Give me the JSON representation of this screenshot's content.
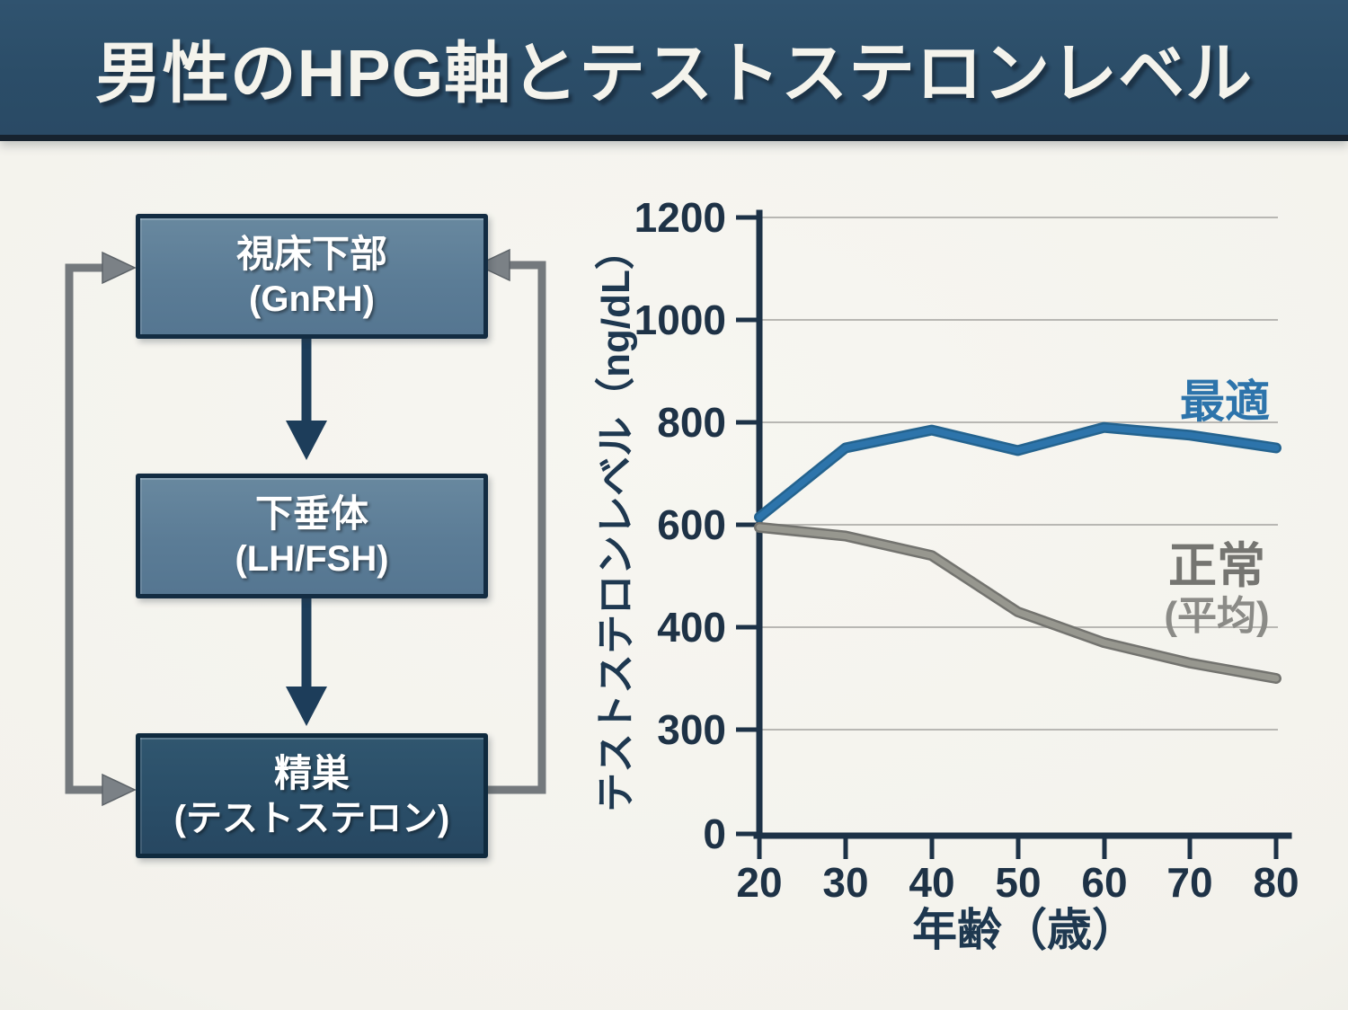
{
  "banner": {
    "title": "男性のHPG軸とテストステロンレベル",
    "bg_color": "#2b4d68"
  },
  "flow": {
    "boxes": [
      {
        "id": "hypothalamus",
        "line1": "視床下部",
        "line2": "(GnRH)"
      },
      {
        "id": "pituitary",
        "line1": "下垂体",
        "line2": "(LH/FSH)"
      },
      {
        "id": "testes",
        "line1": "精巣",
        "line2": "(テストステロン)"
      }
    ],
    "arrow_color": "#1d3d5a",
    "feedback_color": "#74797d"
  },
  "chart": {
    "ylabel": "テストステロンレベル（ng/dL）",
    "xlabel": "年齢（歳）",
    "yticks": [
      "1200",
      "1000",
      "800",
      "600",
      "400",
      "300",
      "0"
    ],
    "xticks": [
      "20",
      "30",
      "40",
      "50",
      "60",
      "70",
      "80"
    ],
    "labels": {
      "optimal": "最適",
      "normal": "正常",
      "normal_sub": "(平均)"
    },
    "colors": {
      "optimal": "#2d74ab",
      "optimal_under": "#24638f",
      "normal": "#97978f",
      "normal_under": "#73736f",
      "optimal_label": "#2d74ab",
      "normal_label": "#757571",
      "normal_sub_label": "#8b8b87",
      "axis": "#1d3247",
      "grid": "#b8b7b3"
    }
  },
  "chart_data": {
    "type": "line",
    "x": [
      20,
      30,
      40,
      50,
      60,
      70,
      80
    ],
    "series": [
      {
        "name": "最適",
        "values": [
          615,
          750,
          785,
          745,
          790,
          775,
          750
        ]
      },
      {
        "name": "正常（平均）",
        "values": [
          595,
          578,
          540,
          430,
          385,
          365,
          350
        ]
      }
    ],
    "xlabel": "年齢（歳）",
    "ylabel": "テストステロンレベル（ng/dL）",
    "ytick_values": [
      1200,
      1000,
      800,
      600,
      400,
      300,
      0
    ],
    "xlim": [
      20,
      80
    ],
    "grid": true,
    "legend": "inline-labels"
  }
}
